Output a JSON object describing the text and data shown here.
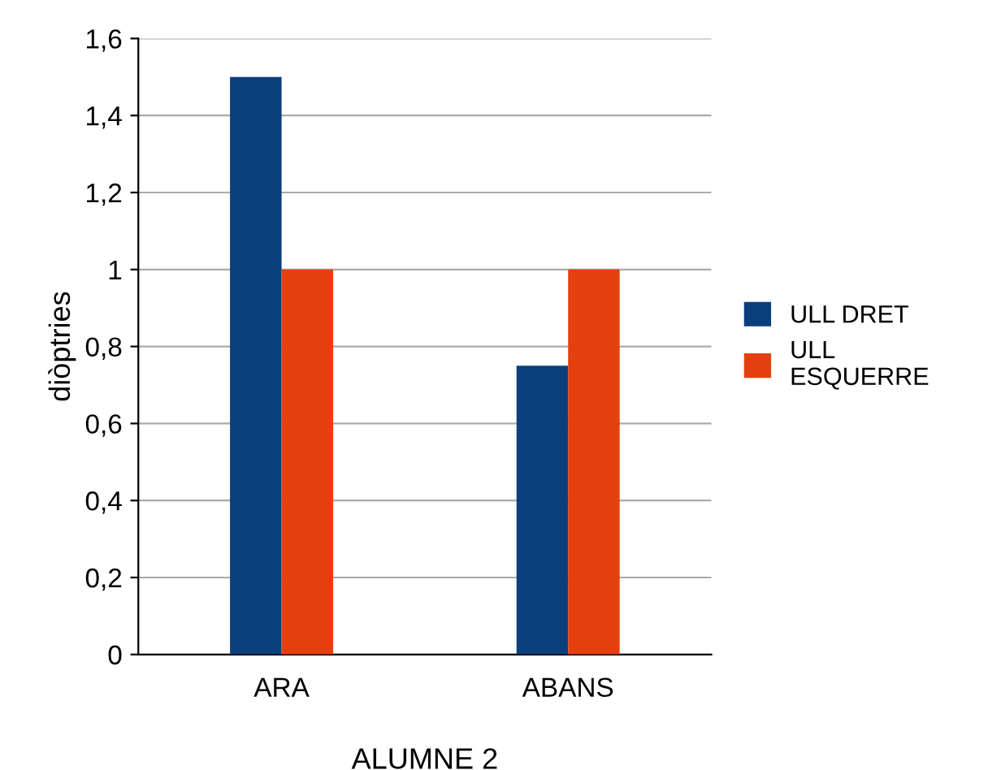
{
  "chart_data": {
    "type": "bar",
    "xlabel": "ALUMNE 2",
    "ylabel": "diòptries",
    "categories": [
      "ARA",
      "ABANS"
    ],
    "series": [
      {
        "name": "ULL DRET",
        "color": "#0a3f7c",
        "values": [
          1.5,
          0.75
        ]
      },
      {
        "name": "ULL\nESQUERRE",
        "color": "#e4400f",
        "values": [
          1.0,
          1.0
        ]
      }
    ],
    "ylim": [
      0,
      1.6
    ],
    "yticks": [
      0,
      {
        "value": 0.2,
        "label": "0,2"
      },
      {
        "value": 0.4,
        "label": "0,4"
      },
      {
        "value": 0.6,
        "label": "0,6"
      },
      {
        "value": 0.8,
        "label": "0,8"
      },
      1,
      {
        "value": 1.2,
        "label": "1,2"
      },
      {
        "value": 1.4,
        "label": "1,4"
      },
      {
        "value": 1.6,
        "label": "1,6"
      }
    ],
    "grid": "y",
    "legend": "right"
  }
}
